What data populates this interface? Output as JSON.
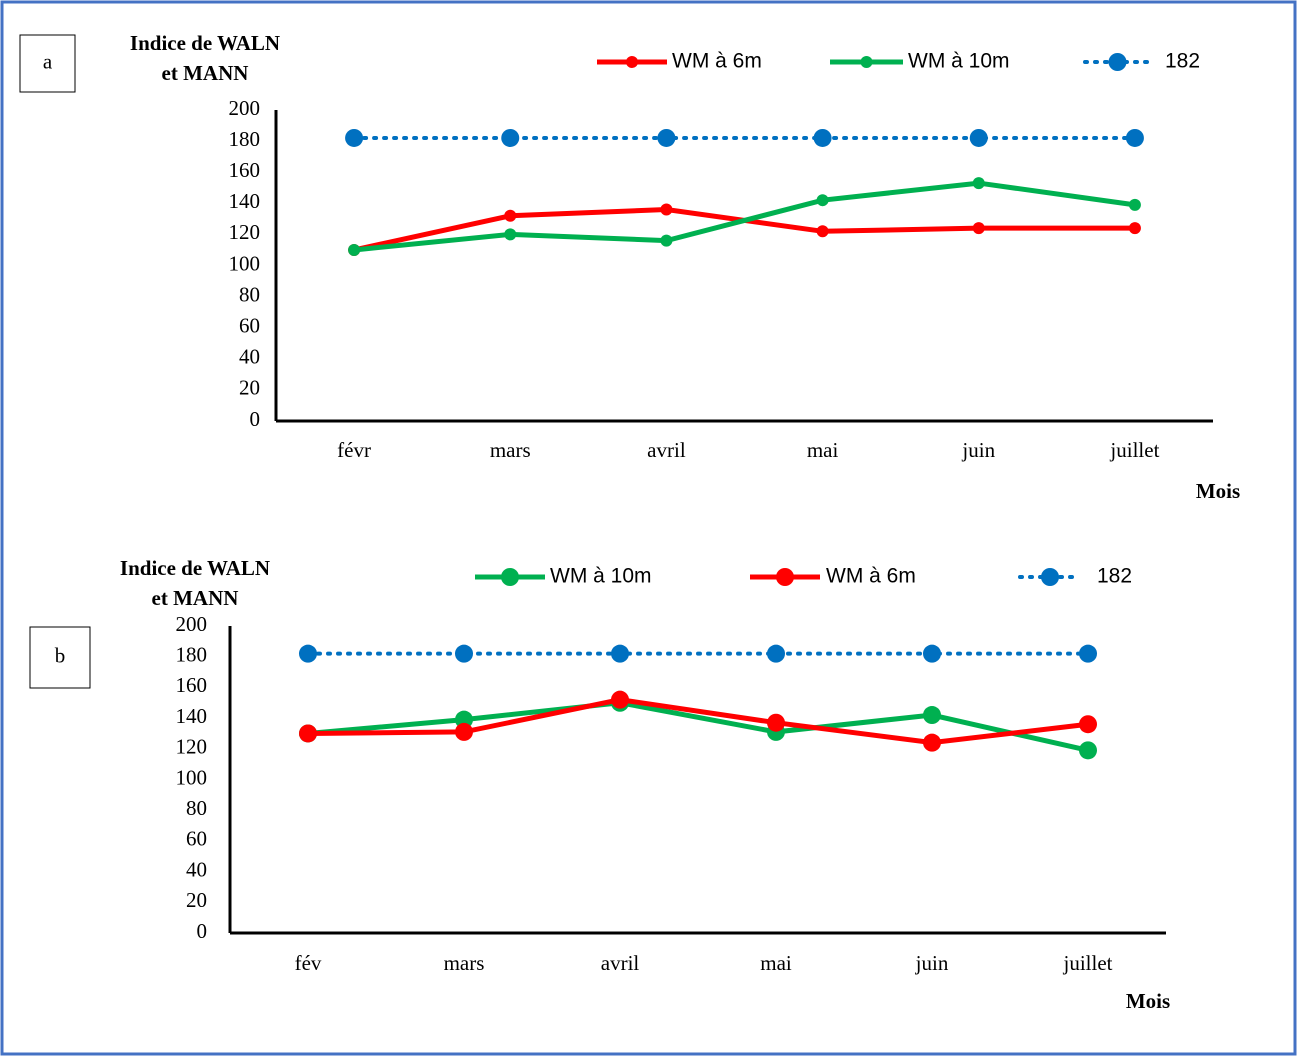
{
  "chart_data": [
    {
      "type": "line",
      "panel_label": "a",
      "ylabel": [
        "Indice de WALN",
        "et MANN"
      ],
      "xlabel": "Mois",
      "categories": [
        "févr",
        "mars",
        "avril",
        "mai",
        "juin",
        "juillet"
      ],
      "ylim": [
        0,
        200
      ],
      "yticks": [
        0,
        20,
        40,
        60,
        80,
        100,
        120,
        140,
        160,
        180,
        200
      ],
      "series": [
        {
          "name": "WM à 6m",
          "color": "#ff0000",
          "style": "solid",
          "values": [
            110,
            132,
            136,
            122,
            124,
            124
          ]
        },
        {
          "name": "WM  à 10m",
          "color": "#00b050",
          "style": "solid",
          "values": [
            110,
            120,
            116,
            142,
            153,
            139
          ]
        },
        {
          "name": "182",
          "color": "#0070c0",
          "style": "dotted",
          "values": [
            182,
            182,
            182,
            182,
            182,
            182
          ]
        }
      ]
    },
    {
      "type": "line",
      "panel_label": "b",
      "ylabel": [
        "Indice de WALN",
        "et MANN"
      ],
      "xlabel": "Mois",
      "categories": [
        "fév",
        "mars",
        "avril",
        "mai",
        "juin",
        "juillet"
      ],
      "ylim": [
        0,
        200
      ],
      "yticks": [
        0,
        20,
        40,
        60,
        80,
        100,
        120,
        140,
        160,
        180,
        200
      ],
      "series": [
        {
          "name": "WM à 10m",
          "color": "#00b050",
          "style": "solid",
          "values": [
            130,
            139,
            150,
            131,
            142,
            119
          ]
        },
        {
          "name": "WM à 6m",
          "color": "#ff0000",
          "style": "solid",
          "values": [
            130,
            131,
            152,
            137,
            124,
            136
          ]
        },
        {
          "name": "182",
          "color": "#0070c0",
          "style": "dotted",
          "values": [
            182,
            182,
            182,
            182,
            182,
            182
          ]
        }
      ]
    }
  ]
}
